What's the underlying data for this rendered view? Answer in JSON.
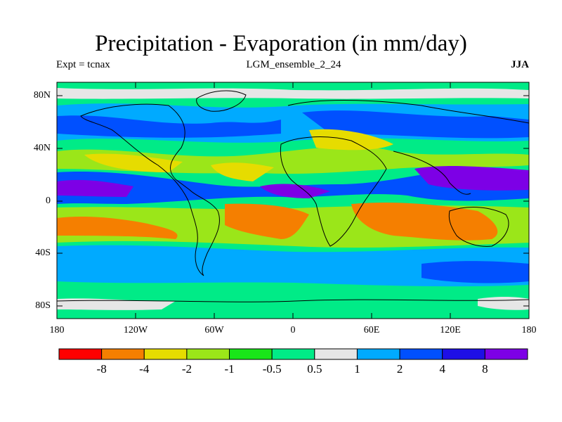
{
  "title": "Precipitation - Evaporation (in mm/day)",
  "subtitle_left": "Expt = tcnax",
  "subtitle_center": "LGM_ensemble_2_24",
  "subtitle_right": "JJA",
  "lat_labels": [
    "80N",
    "40N",
    "0",
    "40S",
    "80S"
  ],
  "lon_labels": [
    "180",
    "120W",
    "60W",
    "0",
    "60E",
    "120E",
    "180"
  ],
  "colorbar": {
    "colors": [
      "#ff0000",
      "#f57f00",
      "#e6dc00",
      "#9be619",
      "#19e619",
      "#00eb87",
      "#e6e6e6",
      "#00aaff",
      "#0050ff",
      "#1e0fe6",
      "#7d00e6"
    ],
    "labels": [
      "-8",
      "-4",
      "-2",
      "-1",
      "-0.5",
      "0.5",
      "1",
      "2",
      "4",
      "8"
    ]
  }
}
